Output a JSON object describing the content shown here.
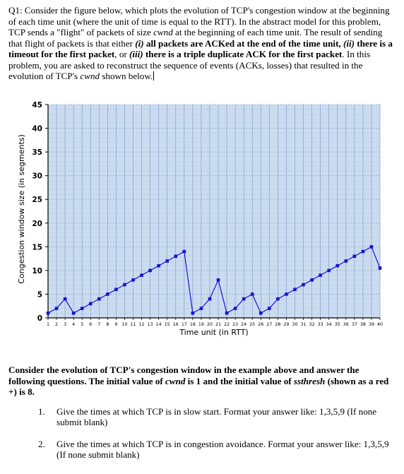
{
  "question": {
    "intro_a": "Q1: Consider the figure below, which plots the evolution of TCP's congestion window at the beginning of each time unit (where the unit of time is equal to the RTT). In the abstract model for this problem, TCP sends a \"flight\" of packets of size ",
    "cwnd": "cwnd",
    "intro_b": " at the beginning of each time unit. The result of sending that flight of packets is that either ",
    "opt1_num": "(i)",
    "opt1": " all packets are ACKed at the end of the time unit, ",
    "opt2_num": "(ii)",
    "opt2": " there is a timeout for the first packet",
    "or": ", or ",
    "opt3_num": "(iii)",
    "opt3": " there is a triple duplicate ACK for the first packet",
    "intro_c": ". In this problem, you are asked to reconstruct the sequence of events (ACKs, losses) that resulted in the evolution of TCP's ",
    "intro_d": " shown below."
  },
  "sub_question": {
    "a": "Consider the evolution of TCP's congestion window in the example above and answer the following questions. The initial value of ",
    "cwnd": "cwnd",
    "b": " is 1 and the initial value of ",
    "ssthresh": "ssthresh",
    "c": " (shown as a red +) is 8."
  },
  "items": [
    {
      "num": "1.",
      "text": "Give the times at which TCP is in slow start. Format your answer like: 1,3,5,9 (If none submit blank)"
    },
    {
      "num": "2.",
      "text": "Give the times at which TCP is in congestion avoidance. Format your answer like: 1,3,5,9 (If none submit blank)"
    }
  ],
  "colors": {
    "series": "#1414d8",
    "grid_fill": "#ccdcf0",
    "grid_line": "#7f9ccc"
  },
  "chart_data": {
    "type": "line",
    "xlabel": "Time unit (in RTT)",
    "ylabel": "Congestion window size (in segments)",
    "xlim": [
      1,
      40
    ],
    "ylim": [
      0,
      45
    ],
    "x_ticks": [
      1,
      2,
      3,
      4,
      5,
      6,
      7,
      8,
      9,
      10,
      11,
      12,
      13,
      14,
      15,
      16,
      17,
      18,
      19,
      20,
      21,
      22,
      23,
      24,
      25,
      26,
      27,
      28,
      29,
      30,
      31,
      32,
      33,
      34,
      35,
      36,
      37,
      38,
      39,
      40
    ],
    "y_ticks": [
      0,
      5,
      10,
      15,
      20,
      25,
      30,
      35,
      40,
      45
    ],
    "grid": true,
    "series": [
      {
        "x": [
          1,
          2,
          3,
          4,
          5,
          6,
          7,
          8,
          9,
          10,
          11,
          12,
          13,
          14,
          15,
          16,
          17,
          18,
          19,
          20,
          21,
          22,
          23,
          24,
          25,
          26,
          27,
          28,
          29,
          30,
          31,
          32,
          33,
          34,
          35,
          36,
          37,
          38,
          39,
          40
        ],
        "values": [
          1,
          2,
          4,
          1,
          2,
          3,
          4,
          5,
          6,
          7,
          8,
          9,
          10,
          11,
          12,
          13,
          14,
          1,
          2,
          4,
          8,
          1,
          2,
          4,
          5,
          1,
          2,
          4,
          5,
          6,
          7,
          8,
          9,
          10,
          11,
          12,
          13,
          14,
          15,
          10.5
        ]
      }
    ]
  }
}
